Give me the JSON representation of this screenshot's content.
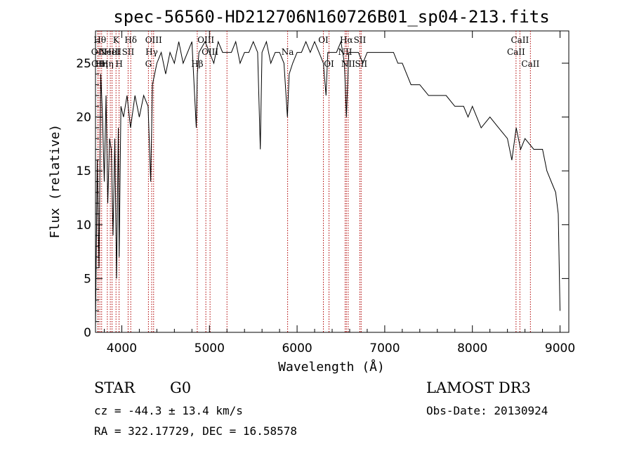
{
  "chart_data": {
    "type": "line",
    "title": "spec-56560-HD212706N160726B01_sp04-213.fits",
    "xlabel": "Wavelength (Å)",
    "ylabel": "Flux (relative)",
    "xlim": [
      3700,
      9100
    ],
    "ylim": [
      0,
      28
    ],
    "xticks": [
      4000,
      5000,
      6000,
      7000,
      8000,
      9000
    ],
    "yticks": [
      0,
      5,
      10,
      15,
      20,
      25
    ],
    "series": [
      {
        "name": "spectrum",
        "x": [
          3700,
          3720,
          3740,
          3760,
          3780,
          3800,
          3820,
          3840,
          3860,
          3880,
          3900,
          3920,
          3940,
          3960,
          3970,
          3990,
          4020,
          4060,
          4100,
          4150,
          4200,
          4250,
          4300,
          4330,
          4350,
          4400,
          4450,
          4500,
          4550,
          4600,
          4650,
          4700,
          4750,
          4800,
          4850,
          4862,
          4880,
          4950,
          5000,
          5050,
          5100,
          5150,
          5200,
          5250,
          5300,
          5350,
          5400,
          5450,
          5500,
          5550,
          5580,
          5600,
          5650,
          5700,
          5750,
          5800,
          5850,
          5890,
          5910,
          5950,
          6000,
          6050,
          6100,
          6150,
          6200,
          6250,
          6300,
          6330,
          6350,
          6400,
          6450,
          6500,
          6540,
          6563,
          6590,
          6650,
          6700,
          6750,
          6800,
          6900,
          7000,
          7100,
          7150,
          7200,
          7250,
          7300,
          7400,
          7500,
          7600,
          7700,
          7800,
          7900,
          7950,
          8000,
          8100,
          8200,
          8300,
          8400,
          8450,
          8500,
          8550,
          8600,
          8700,
          8800,
          8850,
          8900,
          8950,
          8980,
          9000
        ],
        "y": [
          0.5,
          16,
          6,
          24,
          20,
          14,
          22,
          12,
          18,
          17,
          9,
          18,
          5,
          19,
          7,
          21,
          20,
          22,
          19,
          22,
          20,
          22,
          21,
          14,
          23,
          25,
          26,
          24,
          26,
          25,
          27,
          25,
          26,
          27,
          19,
          24,
          26,
          27,
          26,
          25,
          27,
          26,
          26,
          26,
          27,
          25,
          26,
          26,
          27,
          26,
          17,
          26,
          27,
          25,
          26,
          26,
          25,
          20,
          24,
          25,
          26,
          26,
          27,
          26,
          27,
          26,
          25,
          22,
          26,
          26,
          26,
          27,
          25,
          20,
          26,
          26,
          26,
          25,
          26,
          26,
          26,
          26,
          25,
          25,
          24,
          23,
          23,
          22,
          22,
          22,
          21,
          21,
          20,
          21,
          19,
          20,
          19,
          18,
          16,
          19,
          17,
          18,
          17,
          17,
          15,
          14,
          13,
          11,
          2
        ]
      }
    ],
    "lines": [
      {
        "w": 3727,
        "label": "OII",
        "row": 1
      },
      {
        "w": 3730,
        "label": "OII",
        "row": 2
      },
      {
        "w": 3750,
        "label": "Hθ",
        "row": 0
      },
      {
        "w": 3770,
        "label": "Hη",
        "row": 2
      },
      {
        "w": 3835,
        "label": "Hη",
        "row": 2
      },
      {
        "w": 3869,
        "label": "NeIII",
        "row": 1
      },
      {
        "w": 3889,
        "label": "HeI",
        "row": 1
      },
      {
        "w": 3934,
        "label": "K",
        "row": 0
      },
      {
        "w": 3969,
        "label": "H",
        "row": 2
      },
      {
        "w": 4072,
        "label": "SII",
        "row": 1
      },
      {
        "w": 4102,
        "label": "Hδ",
        "row": 0
      },
      {
        "w": 4304,
        "label": "G",
        "row": 2
      },
      {
        "w": 4341,
        "label": "Hγ",
        "row": 1
      },
      {
        "w": 4363,
        "label": "OIII",
        "row": 0
      },
      {
        "w": 4861,
        "label": "Hβ",
        "row": 2
      },
      {
        "w": 4959,
        "label": "OIII",
        "row": 0
      },
      {
        "w": 5007,
        "label": "OIII",
        "row": 1
      },
      {
        "w": 5200,
        "label": "",
        "row": 0
      },
      {
        "w": 5892,
        "label": "Na",
        "row": 1
      },
      {
        "w": 6300,
        "label": "OI",
        "row": 0
      },
      {
        "w": 6364,
        "label": "OI",
        "row": 2
      },
      {
        "w": 6548,
        "label": "NII",
        "row": 1
      },
      {
        "w": 6563,
        "label": "Hα",
        "row": 0
      },
      {
        "w": 6583,
        "label": "NII",
        "row": 2
      },
      {
        "w": 6716,
        "label": "SII",
        "row": 0
      },
      {
        "w": 6731,
        "label": "SII",
        "row": 2
      },
      {
        "w": 8498,
        "label": "CaII",
        "row": 1
      },
      {
        "w": 8542,
        "label": "CaII",
        "row": 0
      },
      {
        "w": 8662,
        "label": "CaII",
        "row": 2
      }
    ]
  },
  "info": {
    "class_label": "STAR",
    "subclass": "G0",
    "survey": "LAMOST DR3",
    "redshift": "cz = -44.3 ± 13.4 km/s",
    "obs_date": "Obs-Date: 20130924",
    "coords": "RA = 322.17729, DEC =  16.58578"
  }
}
